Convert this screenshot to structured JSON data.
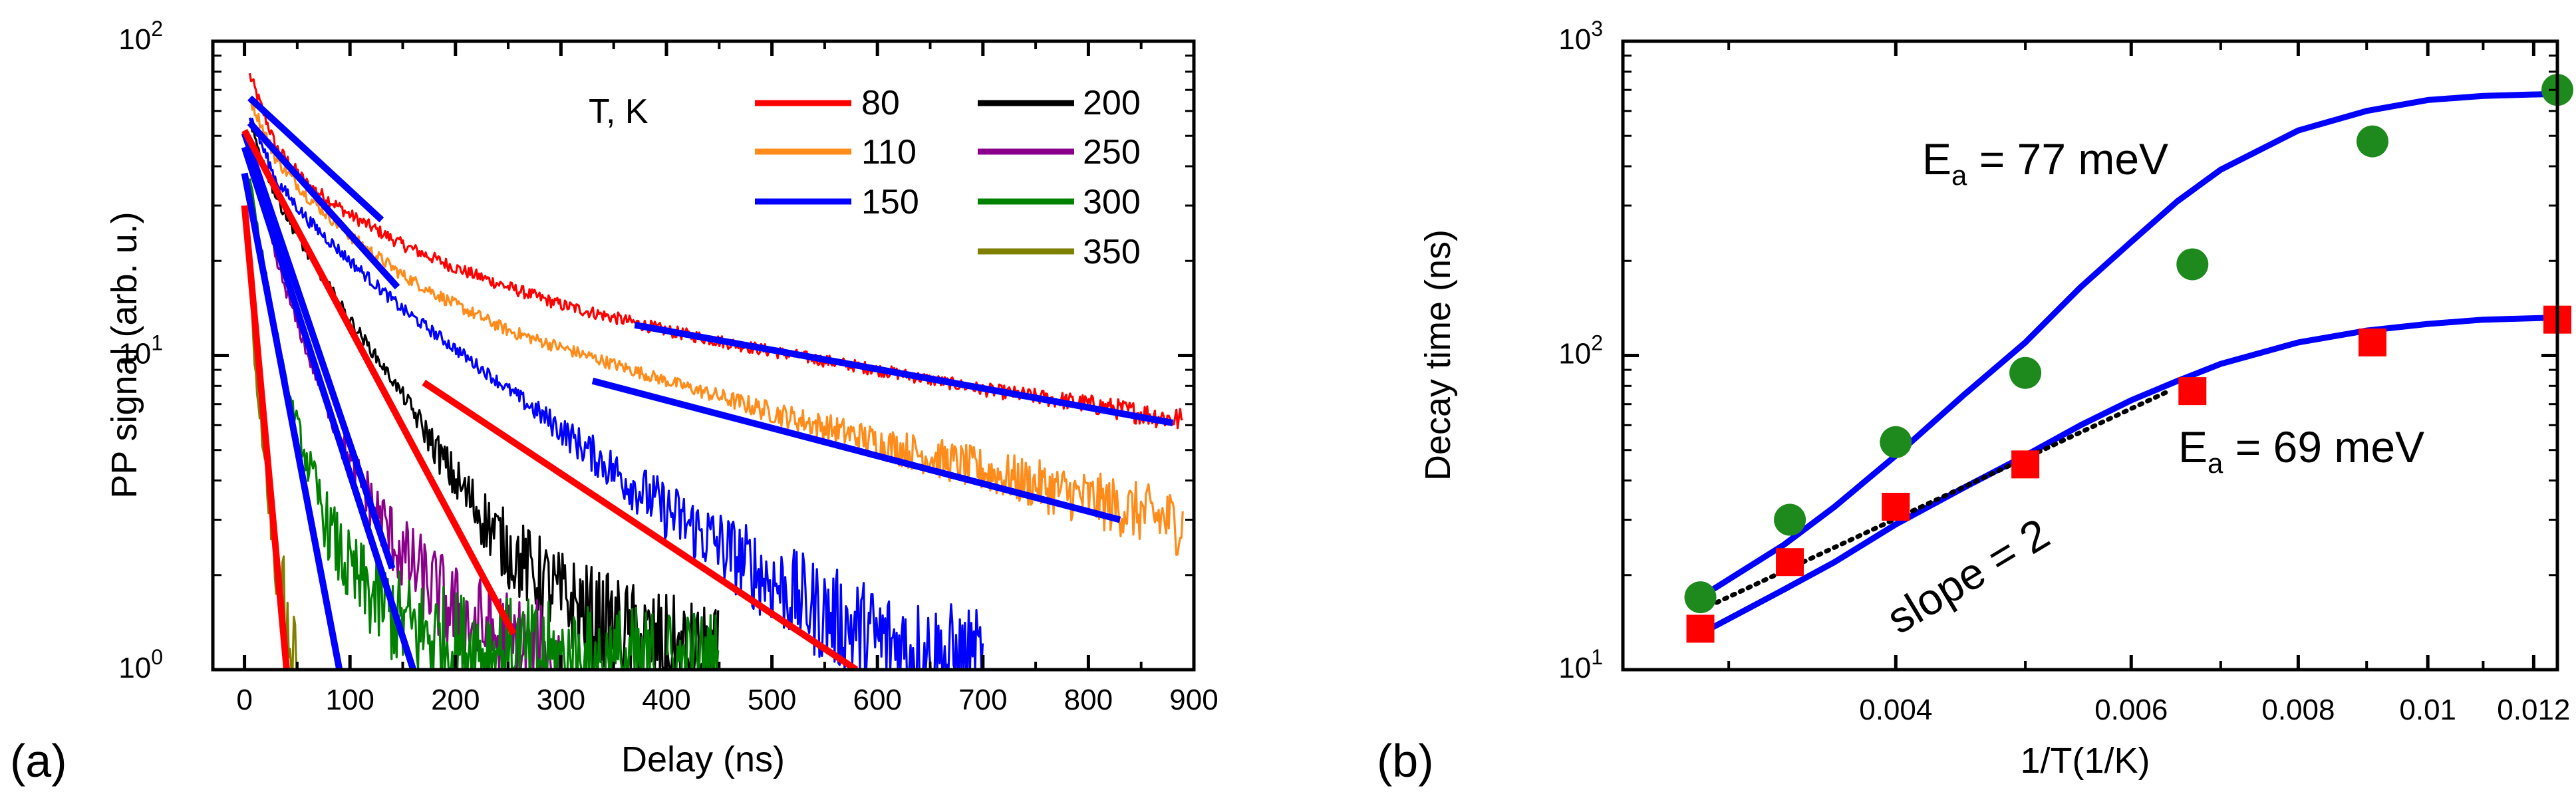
{
  "chart_data": [
    {
      "panel": "a",
      "type": "line",
      "panel_label": "(a)",
      "xlabel": "Delay (ns)",
      "ylabel": "PP signal (arb. u.)",
      "xlim": [
        -30,
        900
      ],
      "ylim": [
        1,
        100
      ],
      "yscale": "log",
      "xticks": [
        0,
        100,
        200,
        300,
        400,
        500,
        600,
        700,
        800,
        900
      ],
      "xtick_labels": [
        "0",
        "100",
        "200",
        "300",
        "400",
        "500",
        "600",
        "700",
        "800",
        "900"
      ],
      "yticks": [
        1,
        10,
        100
      ],
      "ytick_labels": [
        {
          "base": "10",
          "exp": "0"
        },
        {
          "base": "10",
          "exp": "1"
        },
        {
          "base": "10",
          "exp": "2"
        }
      ],
      "legend_title": "T, K",
      "legend_position": "top-right",
      "series": [
        {
          "name": "80",
          "color": "#ff0000",
          "points": [
            [
              5,
              78
            ],
            [
              30,
              46
            ],
            [
              60,
              35
            ],
            [
              100,
              28
            ],
            [
              150,
              22.5
            ],
            [
              200,
              19
            ],
            [
              250,
              16.5
            ],
            [
              300,
              14.5
            ],
            [
              400,
              12
            ],
            [
              500,
              10.3
            ],
            [
              600,
              9
            ],
            [
              700,
              7.8
            ],
            [
              800,
              7
            ],
            [
              890,
              6.2
            ]
          ]
        },
        {
          "name": "110",
          "color": "#ff8c1a",
          "points": [
            [
              5,
              66
            ],
            [
              30,
              42
            ],
            [
              60,
              32
            ],
            [
              100,
              24
            ],
            [
              150,
              18
            ],
            [
              200,
              14.5
            ],
            [
              250,
              12
            ],
            [
              300,
              10.6
            ],
            [
              400,
              8.3
            ],
            [
              500,
              6.6
            ],
            [
              600,
              5.3
            ],
            [
              700,
              4.3
            ],
            [
              800,
              3.5
            ],
            [
              890,
              2.9
            ]
          ]
        },
        {
          "name": "150",
          "color": "#0000ff",
          "points": [
            [
              5,
              58
            ],
            [
              30,
              36
            ],
            [
              60,
              27
            ],
            [
              100,
              20
            ],
            [
              150,
              14
            ],
            [
              200,
              10.5
            ],
            [
              250,
              7.8
            ],
            [
              300,
              5.8
            ],
            [
              350,
              4.3
            ],
            [
              400,
              3.2
            ],
            [
              450,
              2.5
            ],
            [
              500,
              1.9
            ],
            [
              550,
              1.5
            ],
            [
              600,
              1.25
            ],
            [
              650,
              1.1
            ],
            [
              700,
              1.0
            ]
          ]
        },
        {
          "name": "200",
          "color": "#000000",
          "points": [
            [
              5,
              54
            ],
            [
              30,
              32
            ],
            [
              60,
              21
            ],
            [
              100,
              13
            ],
            [
              150,
              7.5
            ],
            [
              200,
              4
            ],
            [
              250,
              2.4
            ],
            [
              300,
              1.7
            ],
            [
              350,
              1.35
            ],
            [
              400,
              1.15
            ],
            [
              450,
              1.0
            ]
          ]
        },
        {
          "name": "250",
          "color": "#8b008b",
          "points": [
            [
              5,
              45
            ],
            [
              30,
              20
            ],
            [
              60,
              10
            ],
            [
              100,
              4.5
            ],
            [
              150,
              2.3
            ],
            [
              200,
              1.5
            ],
            [
              250,
              1.2
            ],
            [
              300,
              1.0
            ]
          ]
        },
        {
          "name": "300",
          "color": "#008000",
          "points": [
            [
              5,
              37
            ],
            [
              20,
              18
            ],
            [
              40,
              8
            ],
            [
              60,
              4.5
            ],
            [
              80,
              2.8
            ],
            [
              100,
              2
            ],
            [
              150,
              1.4
            ],
            [
              200,
              1.2
            ],
            [
              300,
              1.05
            ],
            [
              450,
              1.0
            ]
          ]
        },
        {
          "name": "350",
          "color": "#808000",
          "points": [
            [
              0,
              30
            ],
            [
              5,
              18
            ],
            [
              10,
              9
            ],
            [
              20,
              4.5
            ],
            [
              30,
              2.3
            ],
            [
              40,
              1.4
            ],
            [
              50,
              1.0
            ]
          ]
        }
      ],
      "fit_lines": [
        {
          "color": "#0000ff",
          "from": [
            5,
            66
          ],
          "to": [
            130,
            27
          ]
        },
        {
          "color": "#0000ff",
          "from": [
            5,
            55
          ],
          "to": [
            145,
            16.5
          ]
        },
        {
          "color": "#0000ff",
          "from": [
            370,
            12.5
          ],
          "to": [
            880,
            6.1
          ]
        },
        {
          "color": "#0000ff",
          "from": [
            330,
            8.3
          ],
          "to": [
            830,
            3.0
          ]
        },
        {
          "color": "#0000ff",
          "from": [
            0,
            51
          ],
          "to": [
            140,
            2.1
          ]
        },
        {
          "color": "#0000ff",
          "from": [
            0,
            46
          ],
          "to": [
            160,
            1.0
          ]
        },
        {
          "color": "#0000ff",
          "from": [
            0,
            38
          ],
          "to": [
            90,
            1.0
          ]
        },
        {
          "color": "#ff0000",
          "from": [
            170,
            8.2
          ],
          "to": [
            580,
            1.0
          ]
        },
        {
          "color": "#ff0000",
          "from": [
            0,
            52
          ],
          "to": [
            255,
            1.3
          ]
        },
        {
          "color": "#ff0000",
          "from": [
            0,
            30
          ],
          "to": [
            40,
            1.0
          ]
        }
      ]
    },
    {
      "panel": "b",
      "type": "scatter",
      "panel_label": "(b)",
      "xlabel": "1/T(1/K)",
      "ylabel": "Decay time (ns)",
      "xscale": "log",
      "yscale": "log",
      "xlim": [
        0.0025,
        0.0125
      ],
      "ylim": [
        10,
        1000
      ],
      "xticks": [
        0.004,
        0.006,
        0.008,
        0.01,
        0.012
      ],
      "xtick_labels": [
        "0.004",
        "0.006",
        "0.008",
        "0.01",
        "0.012"
      ],
      "yticks": [
        10,
        100,
        1000
      ],
      "ytick_labels": [
        {
          "base": "10",
          "exp": "1"
        },
        {
          "base": "10",
          "exp": "2"
        },
        {
          "base": "10",
          "exp": "3"
        }
      ],
      "series": [
        {
          "name": "green circles",
          "marker": "circle",
          "color": "#1e8a1e",
          "x": [
            0.002857,
            0.003333,
            0.004,
            0.005,
            0.006667,
            0.009091,
            0.0125
          ],
          "y": [
            17,
            30,
            53,
            88,
            195,
            480,
            700
          ]
        },
        {
          "name": "red squares",
          "marker": "square",
          "color": "#ff0000",
          "x": [
            0.002857,
            0.003333,
            0.004,
            0.005,
            0.006667,
            0.009091,
            0.0125
          ],
          "y": [
            13.5,
            22,
            33,
            45,
            77,
            110,
            130
          ]
        }
      ],
      "fit_curves": [
        {
          "color": "#0000ff",
          "label_base": "E",
          "label_sub": "a",
          "label_rest": " = 77 meV",
          "points": [
            [
              0.002857,
              17
            ],
            [
              0.0033,
              25
            ],
            [
              0.0036,
              33
            ],
            [
              0.004,
              48
            ],
            [
              0.0045,
              75
            ],
            [
              0.005,
              110
            ],
            [
              0.0055,
              165
            ],
            [
              0.006,
              230
            ],
            [
              0.0065,
              310
            ],
            [
              0.007,
              390
            ],
            [
              0.008,
              520
            ],
            [
              0.009,
              600
            ],
            [
              0.01,
              650
            ],
            [
              0.011,
              670
            ],
            [
              0.0125,
              680
            ]
          ]
        },
        {
          "color": "#0000ff",
          "label_base": "E",
          "label_sub": "a",
          "label_rest": " = 69 meV",
          "points": [
            [
              0.002857,
              13
            ],
            [
              0.0033,
              18
            ],
            [
              0.0036,
              22
            ],
            [
              0.004,
              29
            ],
            [
              0.0045,
              38
            ],
            [
              0.005,
              48
            ],
            [
              0.0055,
              60
            ],
            [
              0.006,
              72
            ],
            [
              0.0065,
              83
            ],
            [
              0.007,
              94
            ],
            [
              0.008,
              110
            ],
            [
              0.009,
              120
            ],
            [
              0.01,
              126
            ],
            [
              0.011,
              130
            ],
            [
              0.0125,
              132
            ]
          ]
        }
      ],
      "slope_line": {
        "label": "slope = 2",
        "from": [
          0.00286,
          15.5
        ],
        "to": [
          0.0064,
          77
        ]
      }
    }
  ]
}
